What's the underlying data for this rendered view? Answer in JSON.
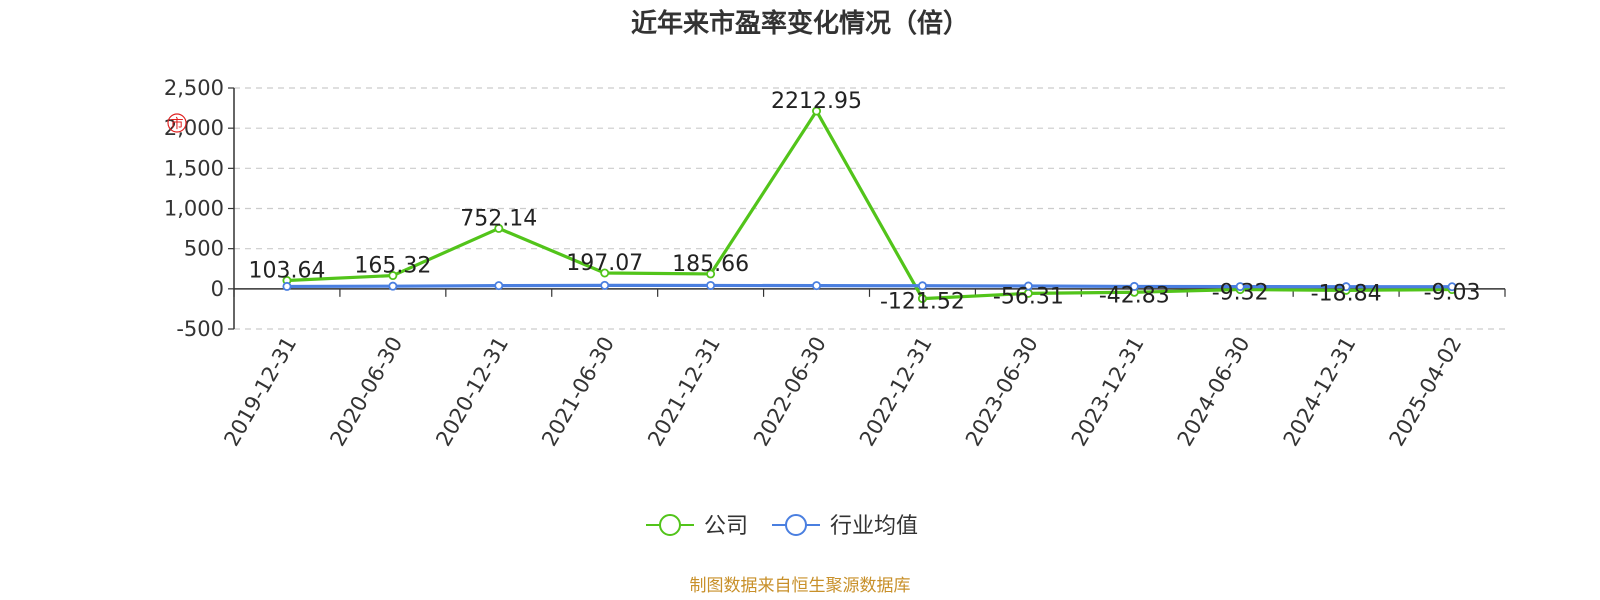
{
  "chart_data": {
    "type": "line",
    "title": "近年来市盈率变化情况（倍）",
    "categories": [
      "2019-12-31",
      "2020-06-30",
      "2020-12-31",
      "2021-06-30",
      "2021-12-31",
      "2022-06-30",
      "2022-12-31",
      "2023-06-30",
      "2023-12-31",
      "2024-06-30",
      "2024-12-31",
      "2025-04-02"
    ],
    "series": [
      {
        "name": "公司",
        "color": "#52c41a",
        "values": [
          103.64,
          165.32,
          752.14,
          197.07,
          185.66,
          2212.95,
          -121.52,
          -56.31,
          -42.83,
          -9.32,
          -18.84,
          -9.03
        ],
        "labels": [
          "103.64",
          "165.32",
          "752.14",
          "197.07",
          "185.66",
          "2212.95",
          "-121.52",
          "-56.31",
          "-42.83",
          "-9.32",
          "-18.84",
          "-9.03"
        ]
      },
      {
        "name": "行业均值",
        "color": "#4a7fe0",
        "values": [
          30,
          33,
          40,
          43,
          42,
          40,
          38,
          35,
          30,
          28,
          27,
          26
        ]
      }
    ],
    "ylim": [
      -500,
      2500
    ],
    "yticks": [
      -500,
      0,
      500,
      1000,
      1500,
      2000,
      2500
    ],
    "ytick_labels": [
      "-500",
      "0",
      "500",
      "1,000",
      "1,500",
      "2,000",
      "2,500"
    ],
    "grid": true,
    "legend": "bottom-center",
    "xlabel": "",
    "ylabel": ""
  },
  "stamp_text": "市",
  "source_text": "制图数据来自恒生聚源数据库"
}
